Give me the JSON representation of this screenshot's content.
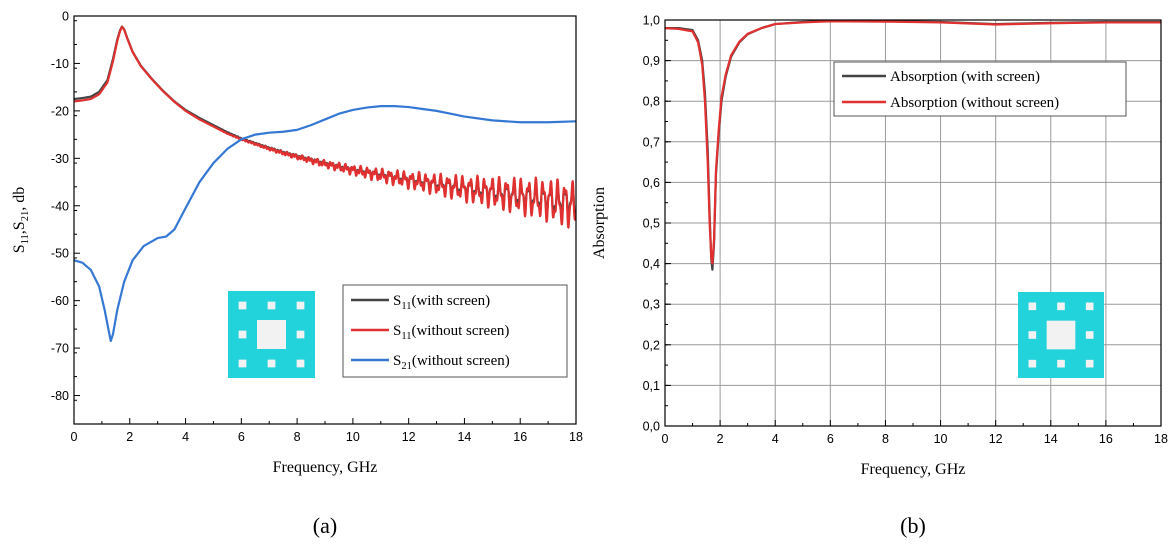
{
  "chart_data": [
    {
      "type": "line",
      "caption": "(a)",
      "xlabel": "Frequency, GHz",
      "ylabel": {
        "base": "S",
        "sub1": "11",
        "mid": ",S",
        "sub2": "21",
        "tail": ", db"
      },
      "xlim": [
        0,
        18
      ],
      "ylim": [
        -86,
        0
      ],
      "xticks": [
        0,
        2,
        4,
        6,
        8,
        10,
        12,
        14,
        16,
        18
      ],
      "yticks": [
        0,
        -10,
        -20,
        -30,
        -40,
        -50,
        -60,
        -70,
        -80
      ],
      "grid": false,
      "legend_position": "bottom-right",
      "series": [
        {
          "legend": {
            "base": "S",
            "sub": "11",
            "rest": "(with screen)"
          },
          "color": "#444444",
          "ripple": 1.2,
          "x": [
            0,
            0.3,
            0.6,
            0.9,
            1.2,
            1.4,
            1.55,
            1.65,
            1.72,
            1.8,
            1.9,
            2.1,
            2.4,
            2.8,
            3.2,
            3.6,
            4,
            4.5,
            5,
            5.5,
            6,
            6.5,
            7,
            7.5,
            8,
            9,
            10,
            11,
            12,
            13,
            14,
            15,
            16,
            17,
            18
          ],
          "y": [
            -17.5,
            -17.3,
            -17,
            -16,
            -13.5,
            -9,
            -5,
            -3,
            -2.2,
            -2.8,
            -4.5,
            -7.5,
            -10.5,
            -13.3,
            -15.8,
            -18,
            -19.8,
            -21.5,
            -23,
            -24.5,
            -25.8,
            -26.8,
            -27.8,
            -28.7,
            -29.5,
            -31,
            -32.3,
            -33.4,
            -34.4,
            -35.3,
            -36.2,
            -37,
            -37.8,
            -38.6,
            -39.5
          ]
        },
        {
          "legend": {
            "base": "S",
            "sub": "11",
            "rest": "(without screen)"
          },
          "color": "#e03030",
          "ripple": 1.8,
          "x": [
            0,
            0.3,
            0.6,
            0.9,
            1.2,
            1.4,
            1.55,
            1.65,
            1.72,
            1.8,
            1.9,
            2.1,
            2.4,
            2.8,
            3.2,
            3.6,
            4,
            4.5,
            5,
            5.5,
            6,
            6.5,
            7,
            7.5,
            8,
            9,
            10,
            11,
            12,
            13,
            14,
            15,
            16,
            17,
            18
          ],
          "y": [
            -18,
            -17.8,
            -17.5,
            -16.5,
            -14,
            -9.5,
            -5.3,
            -3.2,
            -2.3,
            -2.9,
            -4.6,
            -7.6,
            -10.6,
            -13.4,
            -15.9,
            -18.1,
            -20,
            -21.8,
            -23.3,
            -24.8,
            -26,
            -27,
            -28,
            -28.9,
            -29.7,
            -31.2,
            -32.5,
            -33.6,
            -34.6,
            -35.5,
            -36.4,
            -37.2,
            -38,
            -38.8,
            -40
          ]
        },
        {
          "legend": {
            "base": "S",
            "sub": "21",
            "rest": "(without screen)"
          },
          "color": "#3578d4",
          "ripple": 0,
          "x": [
            0,
            0.3,
            0.6,
            0.9,
            1.1,
            1.25,
            1.32,
            1.4,
            1.55,
            1.8,
            2.1,
            2.5,
            3,
            3.3,
            3.6,
            4,
            4.5,
            5,
            5.5,
            6,
            6.5,
            7,
            7.5,
            8,
            8.5,
            9,
            9.5,
            10,
            10.5,
            11,
            11.5,
            12,
            12.5,
            13,
            13.5,
            14,
            15,
            16,
            17,
            18
          ],
          "y": [
            -51.5,
            -52,
            -53.5,
            -57,
            -62,
            -66.5,
            -68.5,
            -67,
            -62,
            -56,
            -51.5,
            -48.5,
            -46.8,
            -46.5,
            -45,
            -40.5,
            -35,
            -31,
            -28,
            -26,
            -25,
            -24.6,
            -24.4,
            -24,
            -23,
            -21.8,
            -20.6,
            -19.8,
            -19.3,
            -19,
            -19,
            -19.2,
            -19.6,
            -20,
            -20.6,
            -21.2,
            -22,
            -22.4,
            -22.4,
            -22.2
          ]
        }
      ]
    },
    {
      "type": "line",
      "caption": "(b)",
      "xlabel": "Frequency, GHz",
      "ylabel": "Absorption",
      "xlim": [
        0,
        18
      ],
      "ylim": [
        0,
        1
      ],
      "xticks": [
        0,
        2,
        4,
        6,
        8,
        10,
        12,
        14,
        16,
        18
      ],
      "yticks": [
        "0,0",
        "0,1",
        "0,2",
        "0,3",
        "0,4",
        "0,5",
        "0,6",
        "0,7",
        "0,8",
        "0,9",
        "1,0"
      ],
      "grid": true,
      "legend_position": "top-right",
      "series": [
        {
          "legend": "Absorption (with screen)",
          "color": "#444444",
          "x": [
            0,
            0.5,
            1,
            1.2,
            1.35,
            1.45,
            1.55,
            1.62,
            1.68,
            1.72,
            1.78,
            1.85,
            1.95,
            2.05,
            2.2,
            2.4,
            2.7,
            3,
            3.5,
            4,
            5,
            6,
            8,
            10,
            12,
            14,
            16,
            18
          ],
          "y": [
            0.98,
            0.98,
            0.975,
            0.95,
            0.9,
            0.82,
            0.68,
            0.52,
            0.41,
            0.385,
            0.45,
            0.62,
            0.72,
            0.8,
            0.86,
            0.91,
            0.945,
            0.965,
            0.98,
            0.99,
            0.995,
            0.998,
            0.997,
            0.995,
            0.99,
            0.993,
            0.995,
            0.995
          ]
        },
        {
          "legend": "Absorption (without screen)",
          "color": "#e03030",
          "x": [
            0,
            0.5,
            1,
            1.2,
            1.35,
            1.45,
            1.55,
            1.62,
            1.68,
            1.72,
            1.78,
            1.85,
            1.95,
            2.05,
            2.2,
            2.4,
            2.7,
            3,
            3.5,
            4,
            5,
            6,
            8,
            10,
            12,
            14,
            16,
            18
          ],
          "y": [
            0.98,
            0.978,
            0.972,
            0.945,
            0.89,
            0.8,
            0.65,
            0.5,
            0.415,
            0.4,
            0.46,
            0.63,
            0.73,
            0.81,
            0.865,
            0.913,
            0.947,
            0.966,
            0.98,
            0.99,
            0.994,
            0.997,
            0.996,
            0.994,
            0.989,
            0.992,
            0.994,
            0.994
          ]
        }
      ]
    }
  ],
  "colors": {
    "inset_fill": "#22d3dc",
    "inset_hole": "#f2f2f2"
  }
}
